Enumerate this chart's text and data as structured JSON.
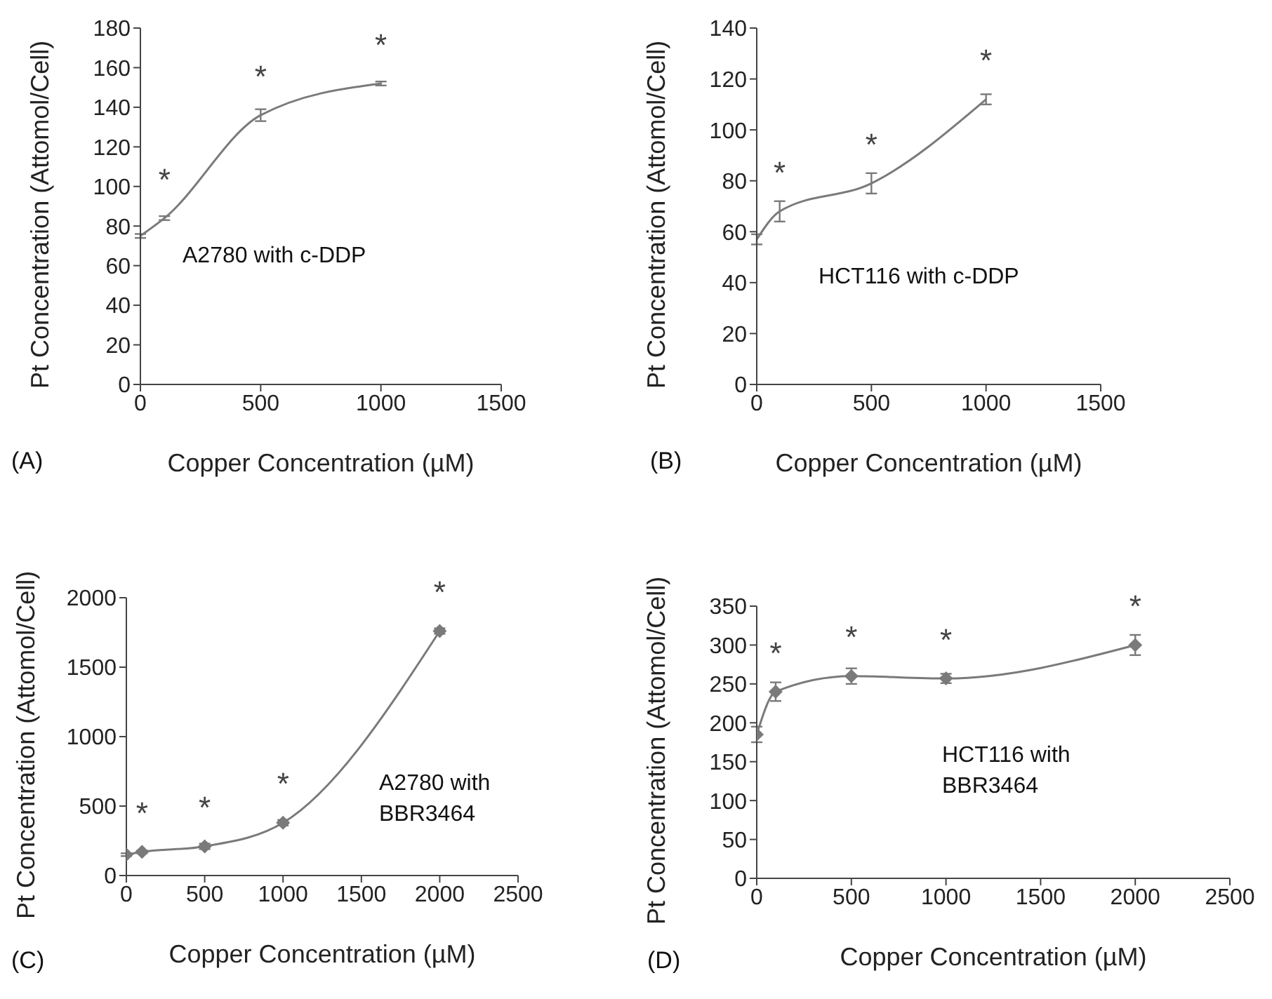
{
  "chart_data": [
    {
      "type": "line",
      "xlabel": "Copper Concentration (µM)",
      "ylabel": "Pt Concentration (Attomol/Cell)",
      "x": [
        0,
        100,
        500,
        1000
      ],
      "xlim": [
        0,
        1500
      ],
      "xticks": [
        0,
        500,
        1000,
        1500
      ],
      "ylim": [
        0,
        180
      ],
      "yticks": [
        0,
        20,
        40,
        60,
        80,
        100,
        120,
        140,
        160,
        180
      ],
      "grid": false,
      "legend": false,
      "marker": "none",
      "line_style": "solid",
      "series": [
        {
          "color": "#7a7a7a",
          "values": [
            75,
            84,
            136,
            152
          ],
          "errors": [
            1,
            1,
            3,
            1
          ]
        }
      ],
      "annotations": [
        "(A)",
        "A2780 with c-DDP",
        "*",
        "*",
        "*"
      ]
    },
    {
      "type": "line",
      "xlabel": "Copper Concentration (µM)",
      "ylabel": "Pt Concentration (Attomol/Cell)",
      "x": [
        0,
        100,
        500,
        1000
      ],
      "xlim": [
        0,
        1500
      ],
      "xticks": [
        0,
        500,
        1000,
        1500
      ],
      "ylim": [
        0,
        140
      ],
      "yticks": [
        0,
        20,
        40,
        60,
        80,
        100,
        120,
        140
      ],
      "grid": false,
      "legend": false,
      "marker": "none",
      "line_style": "solid",
      "series": [
        {
          "color": "#7a7a7a",
          "values": [
            57,
            68,
            79,
            112
          ],
          "errors": [
            2,
            4,
            4,
            2
          ]
        }
      ],
      "annotations": [
        "(B)",
        "HCT116 with c-DDP",
        "*",
        "*",
        "*"
      ]
    },
    {
      "type": "line",
      "xlabel": "Copper Concentration (µM)",
      "ylabel": "Pt Concentration (Attomol/Cell)",
      "x": [
        0,
        100,
        500,
        1000,
        2000
      ],
      "xlim": [
        0,
        2500
      ],
      "xticks": [
        0,
        500,
        1000,
        1500,
        2000,
        2500
      ],
      "ylim": [
        0,
        2000
      ],
      "yticks": [
        0,
        500,
        1000,
        1500,
        2000
      ],
      "grid": false,
      "legend": false,
      "marker": "diamond",
      "line_style": "solid",
      "series": [
        {
          "color": "#7a7a7a",
          "values": [
            150,
            170,
            210,
            380,
            1760
          ],
          "errors": [
            10,
            10,
            20,
            20,
            20
          ]
        }
      ],
      "annotations": [
        "(C)",
        "A2780 with\nBBR3464",
        "*",
        "*",
        "*",
        "*"
      ]
    },
    {
      "type": "line",
      "xlabel": "Copper Concentration (µM)",
      "ylabel": "Pt Concentration (Attomol/Cell)",
      "x": [
        0,
        100,
        500,
        1000,
        2000
      ],
      "xlim": [
        0,
        2500
      ],
      "xticks": [
        0,
        500,
        1000,
        1500,
        2000,
        2500
      ],
      "ylim": [
        0,
        350
      ],
      "yticks": [
        0,
        50,
        100,
        150,
        200,
        250,
        300,
        350
      ],
      "grid": false,
      "legend": false,
      "marker": "diamond",
      "line_style": "solid",
      "series": [
        {
          "color": "#7a7a7a",
          "values": [
            185,
            240,
            260,
            257,
            300
          ],
          "errors": [
            10,
            12,
            10,
            6,
            13
          ]
        }
      ],
      "annotations": [
        "(D)",
        "HCT116 with\nBBR3464",
        "*",
        "*",
        "*",
        "*"
      ]
    }
  ]
}
